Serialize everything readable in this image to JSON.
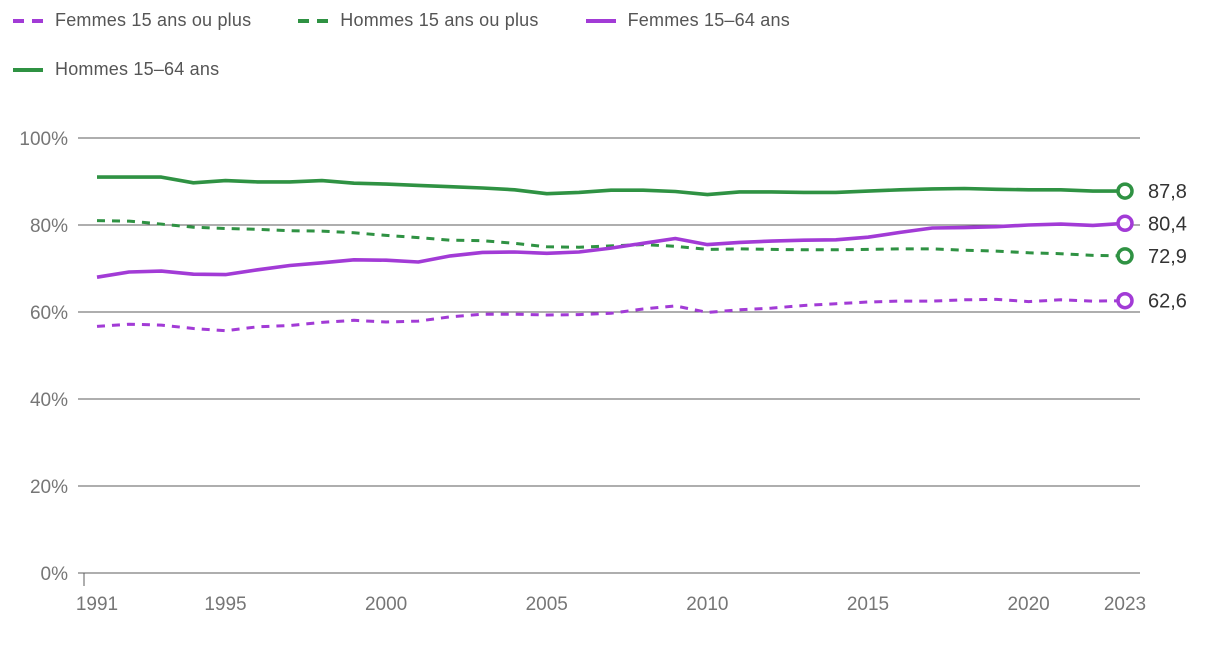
{
  "chart_data": {
    "type": "line",
    "x": [
      1991,
      1992,
      1993,
      1994,
      1995,
      1996,
      1997,
      1998,
      1999,
      2000,
      2001,
      2002,
      2003,
      2004,
      2005,
      2006,
      2007,
      2008,
      2009,
      2010,
      2011,
      2012,
      2013,
      2014,
      2015,
      2016,
      2017,
      2018,
      2019,
      2020,
      2021,
      2022,
      2023
    ],
    "series": [
      {
        "name": "Femmes 15 ans ou plus",
        "color_key": "purple",
        "dashed": true,
        "end_label": "62,6",
        "values": [
          56.7,
          57.2,
          57.0,
          56.2,
          55.7,
          56.6,
          56.9,
          57.6,
          58.1,
          57.7,
          57.9,
          58.9,
          59.5,
          59.5,
          59.3,
          59.4,
          59.7,
          60.7,
          61.4,
          59.9,
          60.5,
          60.9,
          61.5,
          61.9,
          62.3,
          62.5,
          62.5,
          62.8,
          62.9,
          62.4,
          62.8,
          62.5,
          62.6
        ]
      },
      {
        "name": "Hommes 15 ans ou plus",
        "color_key": "green",
        "dashed": true,
        "end_label": "72,9",
        "values": [
          81.0,
          80.9,
          80.2,
          79.5,
          79.2,
          79.0,
          78.7,
          78.6,
          78.2,
          77.6,
          77.1,
          76.5,
          76.4,
          75.8,
          75.0,
          74.9,
          75.2,
          75.5,
          75.1,
          74.4,
          74.5,
          74.4,
          74.3,
          74.3,
          74.4,
          74.5,
          74.5,
          74.2,
          74.0,
          73.6,
          73.4,
          73.0,
          72.9
        ]
      },
      {
        "name": "Femmes 15–64 ans",
        "color_key": "purple",
        "dashed": false,
        "end_label": "80,4",
        "values": [
          68.0,
          69.2,
          69.4,
          68.7,
          68.6,
          69.7,
          70.7,
          71.3,
          72.0,
          71.9,
          71.5,
          72.9,
          73.7,
          73.8,
          73.5,
          73.8,
          74.7,
          75.8,
          76.9,
          75.5,
          76.0,
          76.3,
          76.5,
          76.6,
          77.2,
          78.3,
          79.3,
          79.4,
          79.6,
          80.0,
          80.2,
          79.9,
          80.4
        ]
      },
      {
        "name": "Hommes 15–64 ans",
        "color_key": "green",
        "dashed": false,
        "end_label": "87,8",
        "values": [
          91.0,
          91.0,
          91.0,
          89.7,
          90.2,
          89.9,
          89.9,
          90.2,
          89.6,
          89.4,
          89.1,
          88.8,
          88.5,
          88.1,
          87.2,
          87.5,
          88.0,
          88.0,
          87.7,
          87.0,
          87.6,
          87.6,
          87.5,
          87.5,
          87.8,
          88.1,
          88.3,
          88.4,
          88.2,
          88.1,
          88.1,
          87.8,
          87.8
        ]
      }
    ],
    "yticks": [
      {
        "value": 0,
        "label": "0%"
      },
      {
        "value": 20,
        "label": "20%"
      },
      {
        "value": 40,
        "label": "40%"
      },
      {
        "value": 60,
        "label": "60%"
      },
      {
        "value": 80,
        "label": "80%"
      },
      {
        "value": 100,
        "label": "100%"
      }
    ],
    "xticks": [
      1991,
      1995,
      2000,
      2005,
      2010,
      2015,
      2020,
      2023
    ],
    "ylim": [
      0,
      100
    ],
    "grid": "horizontal",
    "legend_position": "top",
    "colors": {
      "purple": "#a23bd6",
      "green": "#2f9243",
      "grid": "#5c5c5c",
      "tick_text": "#767676",
      "end_label_text": "#333333",
      "marker_fill": "#ffffff"
    }
  }
}
